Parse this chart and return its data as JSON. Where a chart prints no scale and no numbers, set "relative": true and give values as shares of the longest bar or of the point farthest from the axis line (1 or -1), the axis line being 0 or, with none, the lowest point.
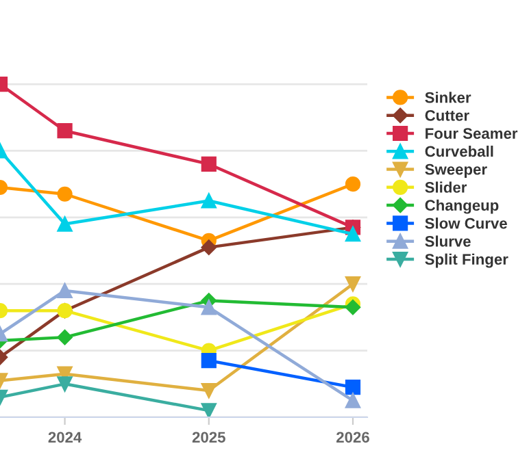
{
  "chart_data": {
    "type": "line",
    "relative": true,
    "x": [
      2023.55,
      2024,
      2025,
      2026
    ],
    "xlim": [
      2023.55,
      2026.1
    ],
    "xticks": [
      2024,
      2025,
      2026
    ],
    "grid": "y",
    "legend": "right",
    "series": [
      {
        "name": "Sinker",
        "color": "#ff9800",
        "marker": "circle",
        "values": [
          0.69,
          0.67,
          0.53,
          0.7
        ]
      },
      {
        "name": "Cutter",
        "color": "#8b3a2a",
        "marker": "diamond",
        "values": [
          0.18,
          0.32,
          0.51,
          0.57
        ]
      },
      {
        "name": "Four Seamer",
        "color": "#d6294b",
        "marker": "square",
        "values": [
          1,
          0.86,
          0.76,
          0.57
        ]
      },
      {
        "name": "Curveball",
        "color": "#00d0e8",
        "marker": "triangle",
        "values": [
          0.8,
          0.58,
          0.65,
          0.55
        ]
      },
      {
        "name": "Sweeper",
        "color": "#e0b040",
        "marker": "triangle_down",
        "values": [
          0.11,
          0.13,
          0.08,
          0.4
        ]
      },
      {
        "name": "Slider",
        "color": "#f0e81a",
        "marker": "circle",
        "values": [
          0.32,
          0.32,
          0.2,
          0.34
        ]
      },
      {
        "name": "Changeup",
        "color": "#22bb33",
        "marker": "diamond",
        "values": [
          0.23,
          0.24,
          0.35,
          0.33
        ]
      },
      {
        "name": "Slow Curve",
        "color": "#0060ff",
        "marker": "square",
        "values": [
          null,
          null,
          0.17,
          0.09
        ]
      },
      {
        "name": "Slurve",
        "color": "#90aad8",
        "marker": "triangle",
        "values": [
          0.25,
          0.38,
          0.33,
          0.05
        ]
      },
      {
        "name": "Split Finger",
        "color": "#3aada0",
        "marker": "triangle_down",
        "values": [
          0.06,
          0.1,
          0.02,
          null
        ]
      }
    ]
  }
}
